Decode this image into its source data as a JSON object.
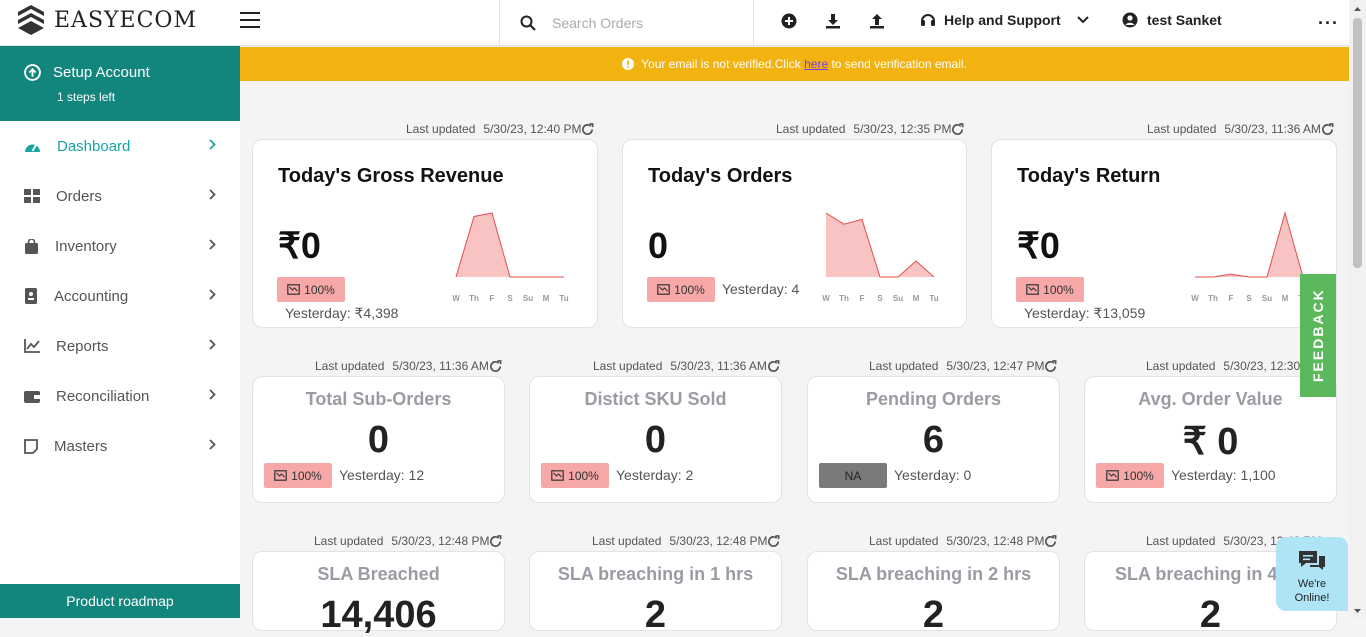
{
  "app": {
    "name": "EASYECOM"
  },
  "topbar": {
    "search_placeholder": "Search Orders",
    "help_label": "Help and Support",
    "user_name": "test Sanket"
  },
  "sidebar": {
    "setup_title": "Setup Account",
    "setup_sub": "1 steps left",
    "items": [
      {
        "label": "Dashboard",
        "icon": "dashboard-gauge-icon",
        "active": true
      },
      {
        "label": "Orders",
        "icon": "grid-icon"
      },
      {
        "label": "Inventory",
        "icon": "bag-icon"
      },
      {
        "label": "Accounting",
        "icon": "ledger-icon"
      },
      {
        "label": "Reports",
        "icon": "chart-icon"
      },
      {
        "label": "Reconciliation",
        "icon": "wallet-icon"
      },
      {
        "label": "Masters",
        "icon": "note-icon"
      }
    ],
    "roadmap_label": "Product roadmap"
  },
  "banner": {
    "pre": "Your email is not verified.Click ",
    "link": "here",
    "post": " to send verification email."
  },
  "labels": {
    "last_updated": "Last updated"
  },
  "big_cards": [
    {
      "updated": "5/30/23, 12:40 PM",
      "title": "Today's Gross Revenue",
      "value": "₹0",
      "badge": "100%",
      "yesterday": "Yesterday: ₹4,398",
      "spark_values": [
        0,
        35,
        37,
        0,
        0,
        0,
        0
      ]
    },
    {
      "updated": "5/30/23, 12:35 PM",
      "title": "Today's Orders",
      "value": "0",
      "badge": "100%",
      "yesterday": "Yesterday: 4",
      "spark_values": [
        4,
        3.3,
        3.6,
        0,
        0,
        1,
        0
      ]
    },
    {
      "updated": "5/30/23, 11:36 AM",
      "title": "Today's Return",
      "value": "₹0",
      "badge": "100%",
      "yesterday": "Yesterday: ₹13,059",
      "spark_values": [
        0,
        0,
        0.2,
        0,
        0,
        4.4,
        0
      ]
    }
  ],
  "spark_days": [
    "W",
    "Th",
    "F",
    "S",
    "Su",
    "M",
    "Tu"
  ],
  "small_cards_row1": [
    {
      "updated": "5/30/23, 11:36 AM",
      "title": "Total Sub-Orders",
      "value": "0",
      "badge": "100%",
      "yesterday": "Yesterday: 12"
    },
    {
      "updated": "5/30/23, 11:36 AM",
      "title": "Distict SKU Sold",
      "value": "0",
      "badge": "100%",
      "yesterday": "Yesterday: 2"
    },
    {
      "updated": "5/30/23, 12:47 PM",
      "title": "Pending Orders",
      "value": "6",
      "badge": "NA",
      "yesterday": "Yesterday: 0"
    },
    {
      "updated": "5/30/23, 12:30",
      "title": "Avg. Order Value",
      "value": "₹ 0",
      "badge": "100%",
      "yesterday": "Yesterday: 1,100"
    }
  ],
  "small_cards_row2": [
    {
      "updated": "5/30/23, 12:48 PM",
      "title": "SLA Breached",
      "value": "14,406"
    },
    {
      "updated": "5/30/23, 12:48 PM",
      "title": "SLA breaching in 1 hrs",
      "value": "2"
    },
    {
      "updated": "5/30/23, 12:48 PM",
      "title": "SLA breaching in 2 hrs",
      "value": "2"
    },
    {
      "updated": "5/30/23, 12:48 PM",
      "title": "SLA breaching in 4",
      "value": "2"
    }
  ],
  "feedback_label": "FEEDBACK",
  "chat": {
    "line1": "We're",
    "line2": "Online!"
  },
  "colors": {
    "teal": "#12857c",
    "active_nav": "#1aa3a3",
    "banner": "#f2b20f",
    "badge_red": "#f6a7a7",
    "feedback": "#5cb85c"
  }
}
